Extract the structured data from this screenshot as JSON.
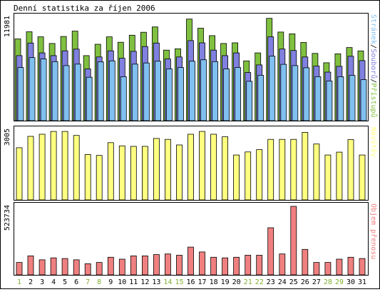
{
  "chart_data": {
    "title": "Denní statistika za říjen 2006",
    "days": [
      "1",
      "2",
      "3",
      "4",
      "5",
      "6",
      "7",
      "8",
      "9",
      "10",
      "11",
      "12",
      "13",
      "14",
      "15",
      "16",
      "17",
      "18",
      "19",
      "20",
      "21",
      "22",
      "23",
      "24",
      "25",
      "26",
      "27",
      "28",
      "29",
      "30",
      "31"
    ],
    "weekend_days": [
      "1",
      "7",
      "8",
      "14",
      "15",
      "21",
      "22",
      "28",
      "29"
    ],
    "colors": {
      "hits": "#80c040",
      "files": "#8080e0",
      "pages": "#80c0f0",
      "visits": "#ffff80",
      "kbytes": "#f08080",
      "weekday_label": "#000000",
      "weekend_label": "#80b030",
      "background": "#ffffff",
      "border": "#000000"
    },
    "charts": [
      {
        "type": "bar",
        "name": "hits-files-pages",
        "max_label": "11981",
        "ymax": 11981,
        "side_label_parts": [
          {
            "text": "Stránek",
            "color": "#80c0f0"
          },
          {
            "text": "/",
            "color": "#000000"
          },
          {
            "text": "Souborů",
            "color": "#8080e0"
          },
          {
            "text": "/",
            "color": "#000000"
          },
          {
            "text": "Přístupů",
            "color": "#80c040"
          }
        ],
        "series": [
          {
            "name": "Přístupů",
            "color": "#80c040",
            "values": [
              9460,
              10290,
              9700,
              8930,
              9740,
              10360,
              7530,
              8840,
              9700,
              9070,
              9890,
              10230,
              10850,
              8160,
              8320,
              11760,
              10700,
              9840,
              8930,
              9010,
              6920,
              7840,
              11840,
              10250,
              10050,
              9050,
              7780,
              6700,
              7730,
              8460,
              8070
            ]
          },
          {
            "name": "Souborů",
            "color": "#8080e0",
            "values": [
              7530,
              8980,
              7840,
              7530,
              8080,
              8280,
              5990,
              7370,
              8080,
              7220,
              8020,
              8580,
              8980,
              7140,
              7370,
              9260,
              9010,
              8160,
              7530,
              7840,
              5570,
              6450,
              9700,
              8290,
              8120,
              7370,
              6320,
              5620,
              6290,
              7450,
              6950
            ]
          },
          {
            "name": "Stránek",
            "color": "#80c0f0",
            "values": [
              6150,
              7300,
              7140,
              6830,
              6370,
              6540,
              5020,
              6800,
              6920,
              5090,
              6540,
              6680,
              6880,
              5990,
              6150,
              6880,
              7050,
              6830,
              5990,
              6150,
              4550,
              5250,
              7460,
              6520,
              6370,
              6120,
              5090,
              4590,
              5090,
              5250,
              4740
            ]
          }
        ]
      },
      {
        "type": "bar",
        "name": "visits",
        "max_label": "3005",
        "ymax": 3005,
        "side_label_parts": [
          {
            "text": "Návštěv",
            "color": "#ffff80"
          }
        ],
        "series": [
          {
            "name": "Návštěv",
            "color": "#ffff80",
            "values": [
              2240,
              2730,
              2820,
              2940,
              2940,
              2770,
              1950,
              1910,
              2460,
              2320,
              2300,
              2300,
              2640,
              2600,
              2360,
              2820,
              2940,
              2820,
              2710,
              1930,
              2060,
              2160,
              2600,
              2600,
              2600,
              2900,
              2400,
              1930,
              2050,
              2590,
              1930
            ]
          }
        ]
      },
      {
        "type": "bar",
        "name": "kbytes",
        "max_label": "523734",
        "ymax": 523734,
        "side_label_parts": [
          {
            "text": "Objem přenosu",
            "color": "#f08080"
          }
        ],
        "series": [
          {
            "name": "Objem přenosu",
            "color": "#f08080",
            "values": [
              95000,
              145000,
              115000,
              130000,
              125000,
              115000,
              85000,
              95000,
              135000,
              120000,
              145000,
              145000,
              155000,
              160000,
              150000,
              212000,
              175000,
              135000,
              130000,
              135000,
              150000,
              150000,
              360000,
              160000,
              523734,
              195000,
              95000,
              95000,
              120000,
              135000,
              125000
            ]
          }
        ]
      }
    ]
  }
}
